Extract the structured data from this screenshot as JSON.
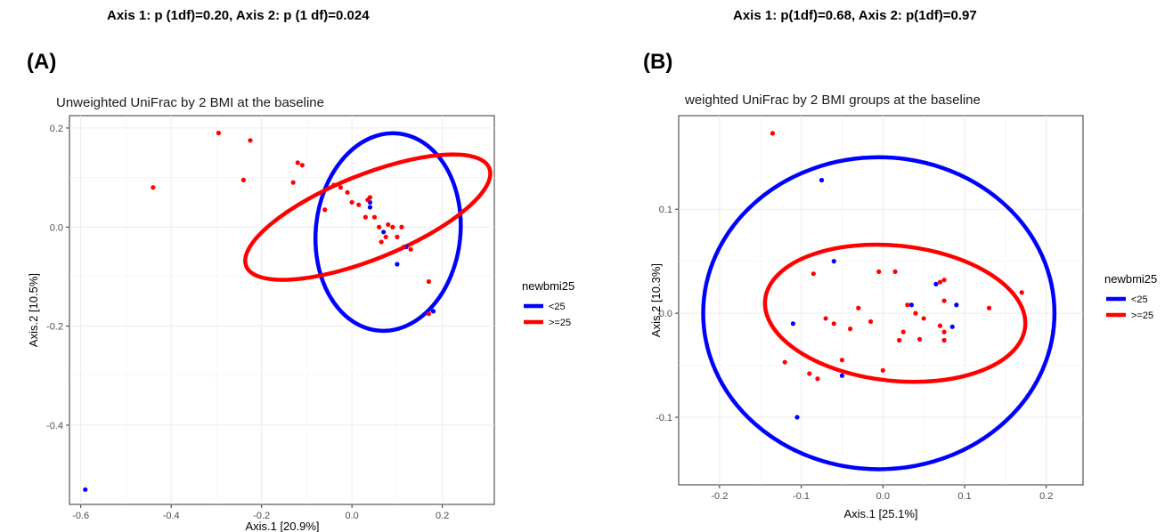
{
  "stats": {
    "a": "Axis 1: p (1df)=0.20, Axis 2: p (1 df)=0.024",
    "b": "Axis 1:  p(1df)=0.68,  Axis 2:  p(1df)=0.97"
  },
  "panels": {
    "a": "(A)",
    "b": "(B)"
  },
  "colors": {
    "lt25": "#0000ff",
    "ge25": "#ff0000"
  },
  "chart_data": [
    {
      "type": "scatter",
      "title": "Unweighted UniFrac by 2 BMI at the baseline",
      "xlabel": "Axis.1   [20.9%]",
      "ylabel": "Axis.2  [10.5%]",
      "xlim": [
        -0.625,
        0.315
      ],
      "ylim": [
        -0.56,
        0.225
      ],
      "xticks": [
        -0.6,
        -0.4,
        -0.2,
        0.0,
        0.2
      ],
      "xtick_labels": [
        "-0.6",
        "-0.4",
        "-0.2",
        "0.0",
        "0.2"
      ],
      "yticks": [
        -0.4,
        -0.2,
        0.0,
        0.2
      ],
      "ytick_labels": [
        "-0.4",
        "-0.2",
        "0.0",
        "0.2"
      ],
      "grid": true,
      "legend": {
        "title": "newbmi25",
        "position": "right",
        "entries": [
          "<25",
          ">=25"
        ]
      },
      "series": [
        {
          "name": "<25",
          "color": "#0000ff",
          "ellipse": {
            "cx": 0.08,
            "cy": -0.01,
            "rx": 0.16,
            "ry": 0.2,
            "angle_deg": -6
          },
          "points": [
            [
              -0.59,
              -0.53
            ],
            [
              0.04,
              0.05
            ],
            [
              0.04,
              0.04
            ],
            [
              0.07,
              -0.01
            ],
            [
              0.12,
              -0.04
            ],
            [
              0.1,
              -0.075
            ],
            [
              0.18,
              -0.17
            ]
          ]
        },
        {
          "name": ">=25",
          "color": "#ff0000",
          "ellipse": {
            "cx": 0.035,
            "cy": 0.02,
            "rx": 0.29,
            "ry": 0.085,
            "angle_deg": 22
          },
          "points": [
            [
              -0.44,
              0.08
            ],
            [
              -0.295,
              0.19
            ],
            [
              -0.225,
              0.175
            ],
            [
              -0.24,
              0.095
            ],
            [
              -0.12,
              0.13
            ],
            [
              -0.11,
              0.125
            ],
            [
              -0.13,
              0.09
            ],
            [
              -0.06,
              0.035
            ],
            [
              -0.04,
              0.085
            ],
            [
              -0.025,
              0.08
            ],
            [
              -0.01,
              0.07
            ],
            [
              0.0,
              0.05
            ],
            [
              0.015,
              0.045
            ],
            [
              0.035,
              0.055
            ],
            [
              0.04,
              0.06
            ],
            [
              0.03,
              0.02
            ],
            [
              0.05,
              0.02
            ],
            [
              0.06,
              0.0
            ],
            [
              0.08,
              0.005
            ],
            [
              0.09,
              0.0
            ],
            [
              0.11,
              0.0
            ],
            [
              0.075,
              -0.02
            ],
            [
              0.1,
              -0.02
            ],
            [
              0.115,
              -0.04
            ],
            [
              0.13,
              -0.045
            ],
            [
              0.065,
              -0.03
            ],
            [
              0.17,
              -0.11
            ],
            [
              0.17,
              -0.175
            ]
          ]
        }
      ]
    },
    {
      "type": "scatter",
      "title": "weighted UniFrac by 2 BMI groups at the baseline",
      "xlabel": "Axis.1  [25.1%]",
      "ylabel": "Axis.2  [10.3%]",
      "xlim": [
        -0.25,
        0.245
      ],
      "ylim": [
        -0.165,
        0.19
      ],
      "xticks": [
        -0.2,
        -0.1,
        0.0,
        0.1,
        0.2
      ],
      "xtick_labels": [
        "-0.2",
        "-0.1",
        "0.0",
        "0.1",
        "0.2"
      ],
      "yticks": [
        -0.1,
        0.0,
        0.1
      ],
      "ytick_labels": [
        "-0.1",
        "0.0",
        "0.1"
      ],
      "grid": true,
      "legend": {
        "title": "newbmi25",
        "position": "right",
        "entries": [
          "<25",
          ">=25"
        ]
      },
      "series": [
        {
          "name": "<25",
          "color": "#0000ff",
          "ellipse": {
            "cx": -0.005,
            "cy": 0.0,
            "rx": 0.215,
            "ry": 0.15,
            "angle_deg": 0
          },
          "points": [
            [
              -0.075,
              0.128
            ],
            [
              -0.06,
              0.05
            ],
            [
              -0.11,
              -0.01
            ],
            [
              -0.05,
              -0.06
            ],
            [
              -0.105,
              -0.1
            ],
            [
              0.035,
              0.008
            ],
            [
              0.065,
              0.028
            ],
            [
              0.09,
              0.008
            ],
            [
              0.085,
              -0.013
            ]
          ]
        },
        {
          "name": ">=25",
          "color": "#ff0000",
          "ellipse": {
            "cx": 0.015,
            "cy": 0.0,
            "rx": 0.16,
            "ry": 0.065,
            "angle_deg": -6
          },
          "points": [
            [
              -0.135,
              0.173
            ],
            [
              -0.085,
              0.038
            ],
            [
              -0.07,
              -0.005
            ],
            [
              -0.05,
              -0.045
            ],
            [
              -0.06,
              -0.01
            ],
            [
              -0.04,
              -0.015
            ],
            [
              -0.03,
              0.005
            ],
            [
              -0.005,
              0.04
            ],
            [
              0.015,
              0.04
            ],
            [
              -0.015,
              -0.008
            ],
            [
              0.0,
              -0.055
            ],
            [
              0.03,
              0.008
            ],
            [
              0.025,
              -0.018
            ],
            [
              0.02,
              -0.026
            ],
            [
              0.04,
              0.0
            ],
            [
              0.05,
              -0.005
            ],
            [
              0.045,
              -0.025
            ],
            [
              0.07,
              0.03
            ],
            [
              0.075,
              0.032
            ],
            [
              0.07,
              -0.012
            ],
            [
              0.075,
              -0.018
            ],
            [
              0.075,
              -0.026
            ],
            [
              0.075,
              0.012
            ],
            [
              0.13,
              0.005
            ],
            [
              0.17,
              0.02
            ],
            [
              -0.12,
              -0.047
            ],
            [
              -0.09,
              -0.058
            ],
            [
              -0.08,
              -0.063
            ]
          ]
        }
      ]
    }
  ]
}
